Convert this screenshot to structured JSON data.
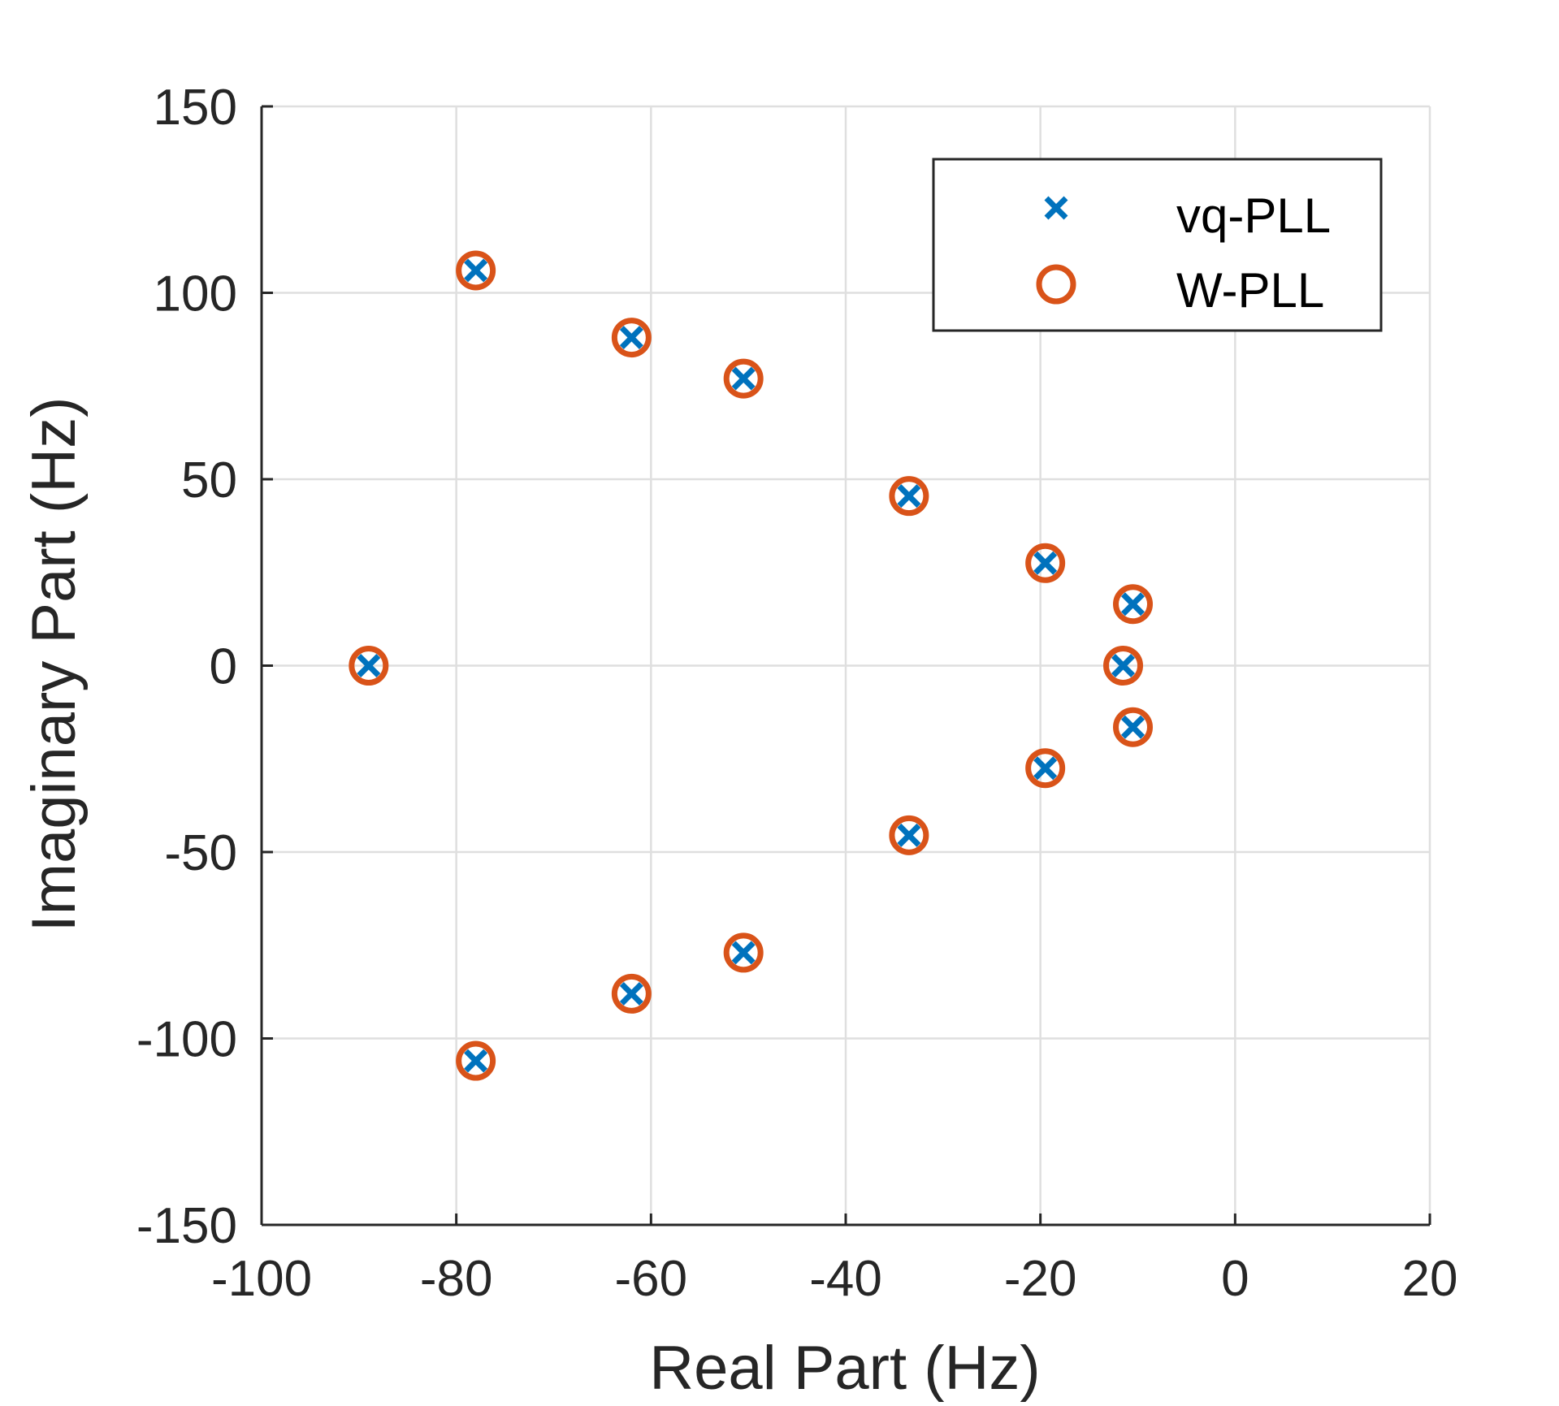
{
  "chart_data": {
    "type": "scatter",
    "xlabel": "Real Part (Hz)",
    "ylabel": "Imaginary Part (Hz)",
    "xlim": [
      -100,
      20
    ],
    "ylim": [
      -150,
      150
    ],
    "xticks": [
      -100,
      -80,
      -60,
      -40,
      -20,
      0,
      20
    ],
    "yticks": [
      -150,
      -100,
      -50,
      0,
      50,
      100,
      150
    ],
    "xtick_labels": [
      "-100",
      "-80",
      "-60",
      "-40",
      "-20",
      "0",
      "20"
    ],
    "ytick_labels": [
      "-150",
      "-100",
      "-50",
      "0",
      "50",
      "100",
      "150"
    ],
    "grid": true,
    "legend_position": "top-right",
    "series": [
      {
        "name": "vq-PLL",
        "marker": "x",
        "color": "#0072BD",
        "x": [
          -89,
          -78,
          -78,
          -62,
          -62,
          -50.5,
          -50.5,
          -33.5,
          -33.5,
          -19.5,
          -19.5,
          -11.5,
          -10.5,
          -10.5
        ],
        "y": [
          0,
          106,
          -106,
          88,
          -88,
          77,
          -77,
          45.5,
          -45.5,
          27.5,
          -27.5,
          0,
          16.5,
          -16.5
        ]
      },
      {
        "name": "W-PLL",
        "marker": "o",
        "color": "#D95319",
        "x": [
          -89,
          -78,
          -78,
          -62,
          -62,
          -50.5,
          -50.5,
          -33.5,
          -33.5,
          -19.5,
          -19.5,
          -11.5,
          -10.5,
          -10.5
        ],
        "y": [
          0,
          106,
          -106,
          88,
          -88,
          77,
          -77,
          45.5,
          -45.5,
          27.5,
          -27.5,
          0,
          16.5,
          -16.5
        ]
      }
    ]
  }
}
